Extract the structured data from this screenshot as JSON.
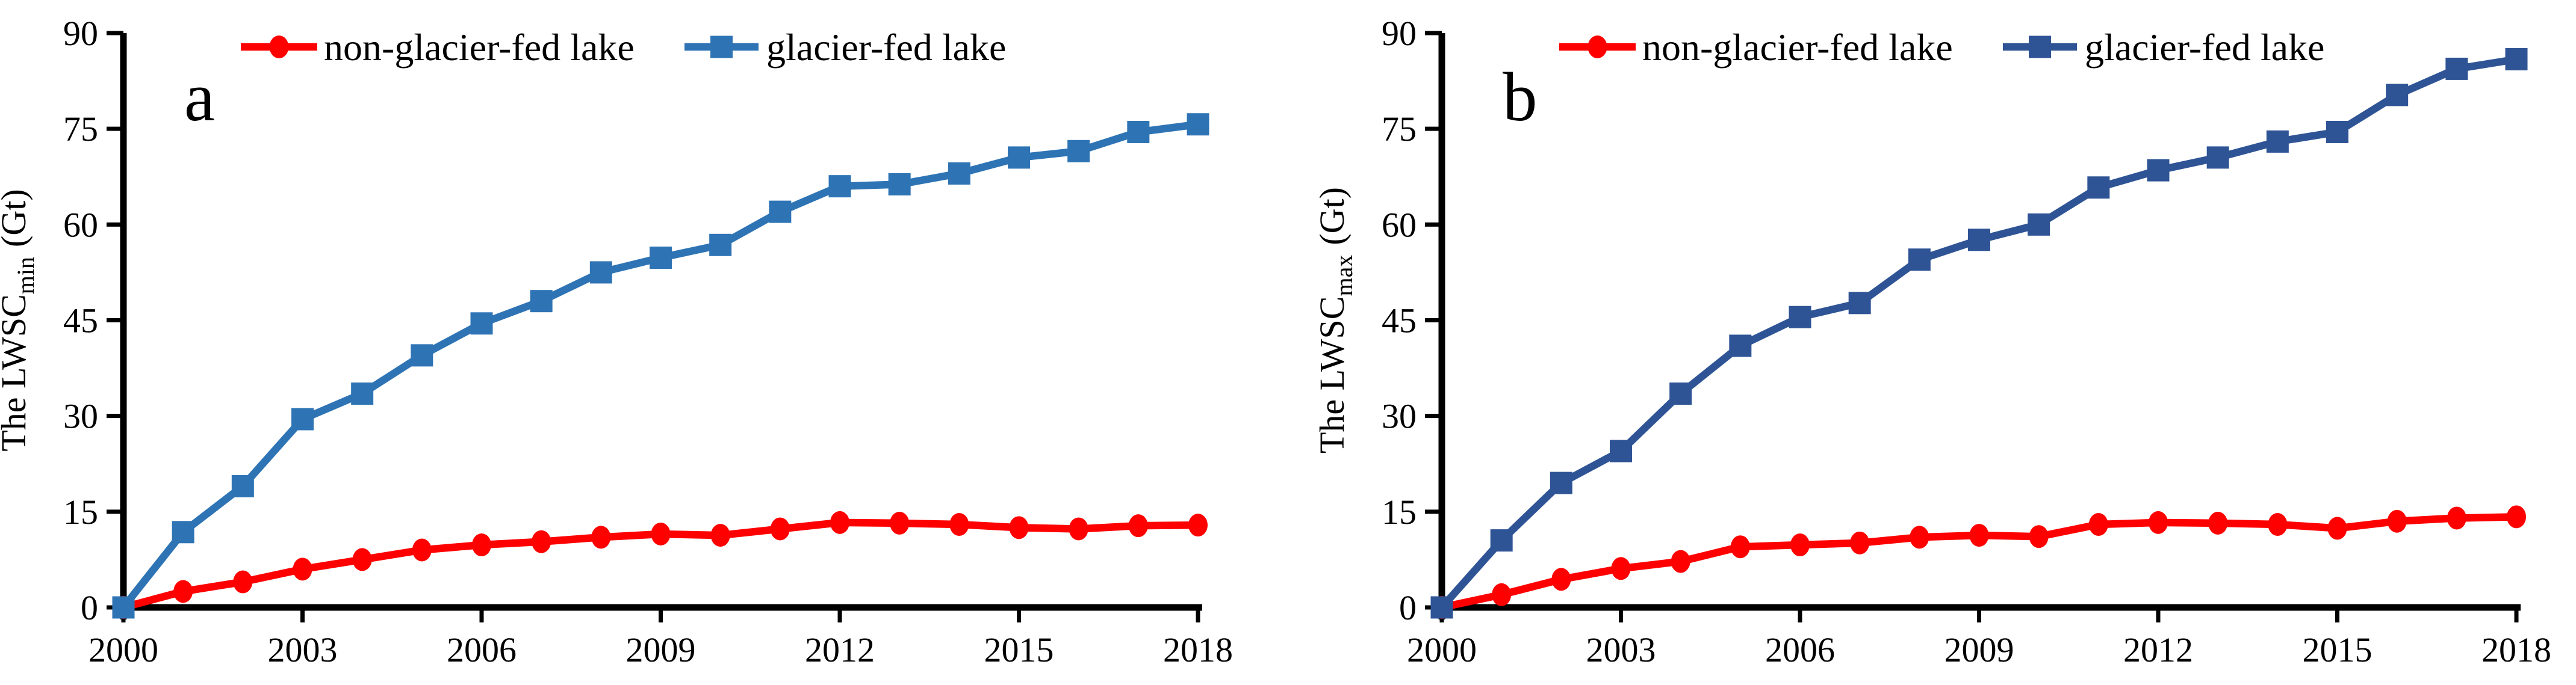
{
  "page": {
    "background": "#ffffff"
  },
  "chart_data": [
    {
      "type": "line",
      "panel_label": "a",
      "ylabel": {
        "prefix": "The LWSC",
        "subscript": "min",
        "suffix": "(Gt)"
      },
      "xlim": [
        2000,
        2018
      ],
      "ylim": [
        0,
        90
      ],
      "grid": false,
      "legend_position": "top-inside-horizontal",
      "x": [
        2000,
        2001,
        2002,
        2003,
        2004,
        2005,
        2006,
        2007,
        2008,
        2009,
        2010,
        2011,
        2012,
        2013,
        2014,
        2015,
        2016,
        2017,
        2018
      ],
      "x_tick_years": [
        2000,
        2003,
        2006,
        2009,
        2012,
        2015,
        2018
      ],
      "x_tick_labels": [
        "2000",
        "2003",
        "2006",
        "2009",
        "2012",
        "2015",
        "2018"
      ],
      "y_ticks": [
        0,
        15,
        30,
        45,
        60,
        75,
        90
      ],
      "y_tick_labels": [
        "0",
        "15",
        "30",
        "45",
        "60",
        "75",
        "90"
      ],
      "series": [
        {
          "name": "non-glacier-fed lake",
          "color": "#fe0000",
          "marker": "circle",
          "values": [
            0,
            2.5,
            4.0,
            6.0,
            7.5,
            9.0,
            9.8,
            10.3,
            11.0,
            11.5,
            11.3,
            12.3,
            13.3,
            13.2,
            13.0,
            12.5,
            12.3,
            12.8,
            12.9
          ]
        },
        {
          "name": "glacier-fed lake",
          "color": "#2e74b5",
          "marker": "square",
          "values": [
            0,
            11.8,
            19.0,
            29.5,
            33.5,
            39.5,
            44.5,
            48.0,
            52.5,
            54.8,
            56.8,
            62.0,
            66.0,
            66.3,
            68.0,
            70.5,
            71.5,
            74.5,
            75.7
          ]
        }
      ]
    },
    {
      "type": "line",
      "panel_label": "b",
      "ylabel": {
        "prefix": "The LWSC",
        "subscript": "max",
        "suffix": "(Gt)"
      },
      "xlim": [
        2000,
        2018
      ],
      "ylim": [
        0,
        90
      ],
      "grid": false,
      "legend_position": "top-inside-horizontal",
      "x": [
        2000,
        2001,
        2002,
        2003,
        2004,
        2005,
        2006,
        2007,
        2008,
        2009,
        2010,
        2011,
        2012,
        2013,
        2014,
        2015,
        2016,
        2017,
        2018
      ],
      "x_tick_years": [
        2000,
        2003,
        2006,
        2009,
        2012,
        2015,
        2018
      ],
      "x_tick_labels": [
        "2000",
        "2003",
        "2006",
        "2009",
        "2012",
        "2015",
        "2018"
      ],
      "y_ticks": [
        0,
        15,
        30,
        45,
        60,
        75,
        90
      ],
      "y_tick_labels": [
        "0",
        "15",
        "30",
        "45",
        "60",
        "75",
        "90"
      ],
      "series": [
        {
          "name": "non-glacier-fed lake",
          "color": "#fe0000",
          "marker": "circle",
          "values": [
            0,
            2.0,
            4.4,
            6.1,
            7.2,
            9.5,
            9.8,
            10.1,
            11.0,
            11.3,
            11.1,
            13.0,
            13.3,
            13.2,
            13.0,
            12.4,
            13.5,
            14.0,
            14.2
          ]
        },
        {
          "name": "glacier-fed lake",
          "color": "#2f5496",
          "marker": "square",
          "values": [
            0,
            10.5,
            19.5,
            24.5,
            33.5,
            41.0,
            45.5,
            47.7,
            54.5,
            57.6,
            60.0,
            65.8,
            68.5,
            70.5,
            73.0,
            74.5,
            80.3,
            84.4,
            85.9
          ]
        }
      ]
    }
  ]
}
